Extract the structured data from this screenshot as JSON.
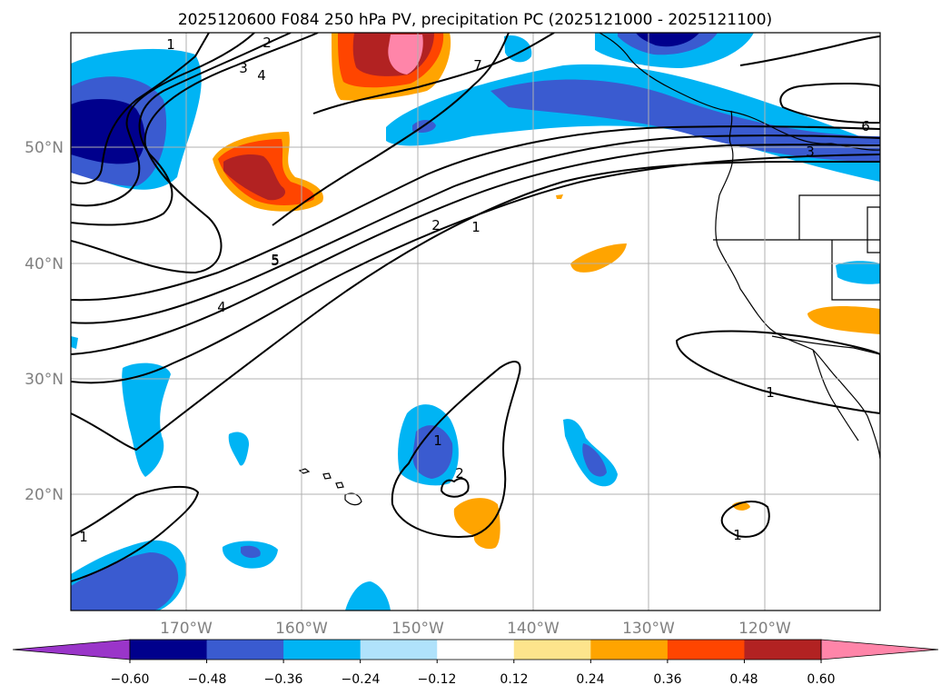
{
  "figure": {
    "title": "2025120600 F084 250 hPa PV, precipitation PC (2025121000 - 2025121100)"
  },
  "map": {
    "lat_labels": [
      "50°N",
      "40°N",
      "30°N",
      "20°N"
    ],
    "lon_labels": [
      "170°W",
      "160°W",
      "150°W",
      "140°W",
      "130°W",
      "120°W"
    ]
  },
  "contours": {
    "labels": [
      "1",
      "2",
      "3",
      "4",
      "7",
      "5",
      "6",
      "3",
      "2",
      "1",
      "5",
      "4",
      "1",
      "2",
      "1",
      "1",
      "1"
    ]
  },
  "colorbar": {
    "ticks": [
      "−0.60",
      "−0.48",
      "−0.36",
      "−0.24",
      "−0.12",
      "0.12",
      "0.24",
      "0.36",
      "0.48",
      "0.60"
    ],
    "colors": [
      "#9a35c9",
      "#00008c",
      "#3a5bd0",
      "#00b4f4",
      "#b0e2fb",
      "#ffffff",
      "#fde48c",
      "#ffa400",
      "#ff4500",
      "#b22222",
      "#ff85a9"
    ]
  },
  "colors": {
    "grid": "#b0b0b0",
    "frame": "#000000",
    "label_gray": "#808080"
  }
}
